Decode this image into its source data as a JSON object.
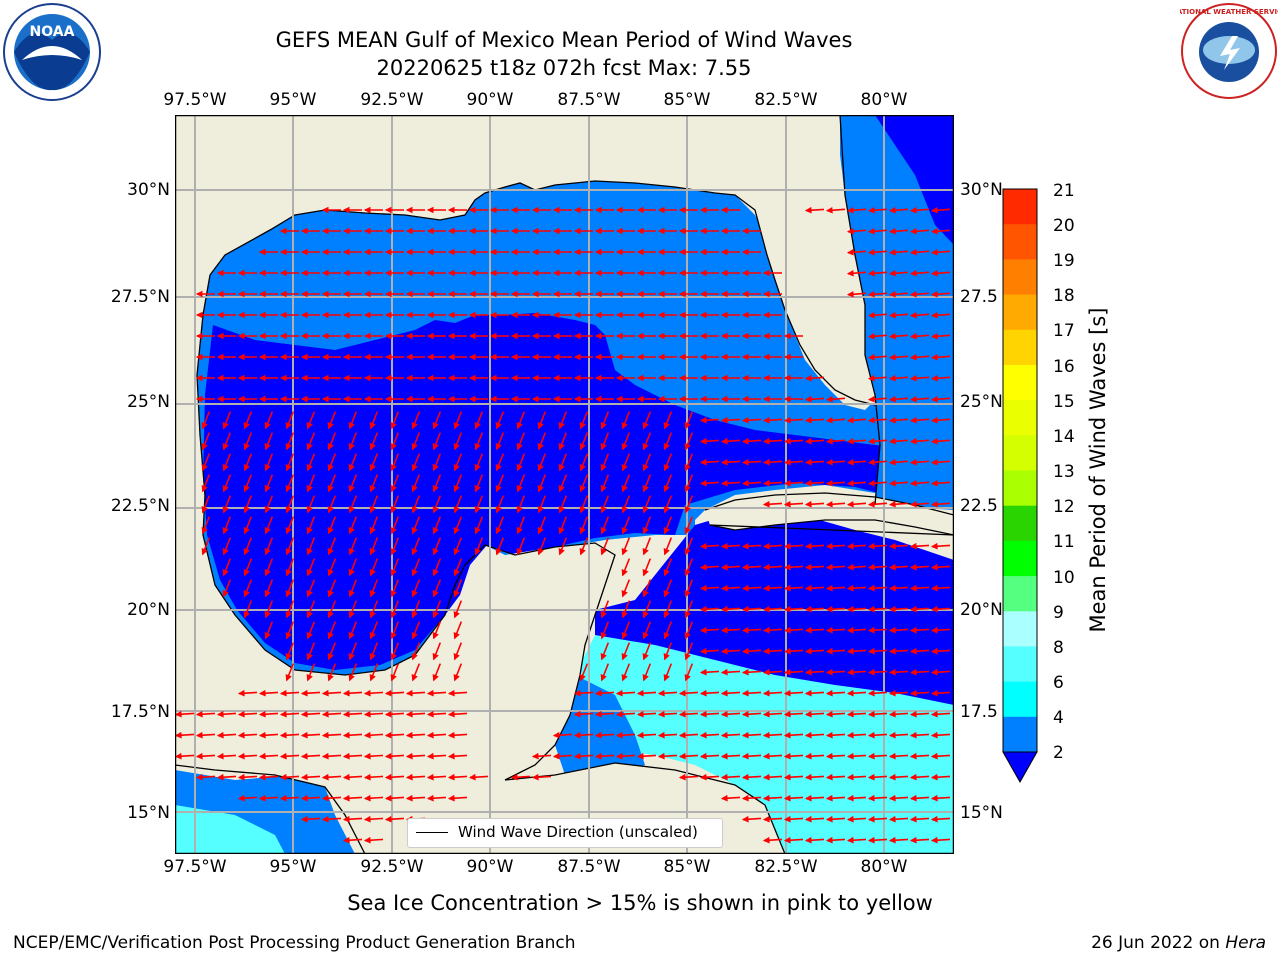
{
  "title_line1": "GEFS MEAN Gulf of Mexico Mean Period of Wind Waves",
  "title_line2": "20220625 t18z 072h fcst   Max: 7.55",
  "lon_labels": [
    "97.5°W",
    "95°W",
    "92.5°W",
    "90°W",
    "87.5°W",
    "85°W",
    "82.5°W",
    "80°W"
  ],
  "lat_labels_left": [
    "30°N",
    "27.5°N",
    "25°N",
    "22.5°N",
    "20°N",
    "17.5°N",
    "15°N"
  ],
  "lat_labels_right": [
    "30°N",
    "27.5",
    "25°N",
    "22.5",
    "20°N",
    "17.5",
    "15°N"
  ],
  "legend_label": "Wind Wave Direction (unscaled)",
  "colorbar": {
    "label": "Mean Period of Wind Waves [s]",
    "ticks": [
      "21",
      "20",
      "19",
      "18",
      "17",
      "16",
      "15",
      "14",
      "13",
      "12",
      "11",
      "10",
      "9",
      "8",
      "6",
      "4",
      "2"
    ],
    "colors": [
      "#ff0000",
      "#ff2a00",
      "#ff5500",
      "#ff8000",
      "#ffaa00",
      "#ffd400",
      "#ffff00",
      "#eaff00",
      "#d4ff00",
      "#aaff00",
      "#2ad400",
      "#00ff00",
      "#55ff7f",
      "#aaffff",
      "#55ffff",
      "#00ffff",
      "#0080ff"
    ],
    "extend_color": "#0000ff"
  },
  "colors": {
    "land": "#efeddc",
    "deep_water": "#0000ff",
    "mid_water": "#0080ff",
    "shallow_water": "#55ffff",
    "arrow": "#ff0000"
  },
  "caption": "Sea Ice Concentration > 15% is shown in pink to yellow",
  "footer_left": "NCEP/EMC/Verification Post Processing Product Generation Branch",
  "footer_date": "26 Jun 2022 on ",
  "footer_host": "Hera",
  "logos": {
    "left": "NOAA",
    "right": "NATIONAL WEATHER SERVICE"
  }
}
